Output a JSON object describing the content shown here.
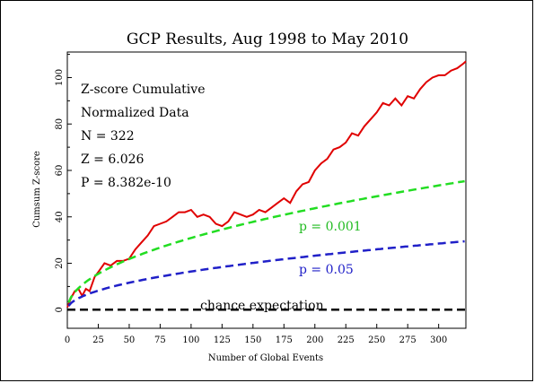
{
  "chart_data": {
    "type": "line",
    "title": "GCP Results, Aug 1998 to May 2010",
    "xlabel": "Number of Global Events",
    "ylabel": "Cumsum Z-score",
    "xlim": [
      0,
      322
    ],
    "ylim": [
      -8,
      111
    ],
    "x_ticks": [
      0,
      25,
      50,
      75,
      100,
      125,
      150,
      175,
      200,
      225,
      250,
      275,
      300
    ],
    "y_ticks": [
      0,
      20,
      40,
      60,
      80,
      100
    ],
    "grid": false,
    "stats": [
      "Z-score Cumulative",
      "Normalized Data",
      "N = 322",
      "Z = 6.026",
      "P = 8.382e-10"
    ],
    "annotations": {
      "p001": "p = 0.001",
      "p05": "p = 0.05",
      "chance": "chance expectation"
    },
    "series": [
      {
        "color": "#e00000",
        "style": "solid",
        "x": [
          0,
          3,
          6,
          9,
          12,
          15,
          18,
          22,
          26,
          30,
          35,
          40,
          45,
          50,
          55,
          60,
          65,
          70,
          75,
          80,
          85,
          90,
          95,
          100,
          105,
          110,
          115,
          120,
          125,
          130,
          135,
          140,
          145,
          150,
          155,
          160,
          165,
          170,
          175,
          180,
          185,
          190,
          195,
          200,
          205,
          210,
          215,
          220,
          225,
          230,
          235,
          240,
          245,
          250,
          255,
          260,
          265,
          270,
          275,
          280,
          285,
          290,
          295,
          300,
          305,
          310,
          315,
          320,
          322
        ],
        "y": [
          1,
          5,
          8,
          9,
          6,
          9,
          8,
          14,
          17,
          20,
          19,
          21,
          21,
          22,
          26,
          29,
          32,
          36,
          37,
          38,
          40,
          42,
          42,
          43,
          40,
          41,
          40,
          37,
          36,
          38,
          42,
          41,
          40,
          41,
          43,
          42,
          44,
          46,
          48,
          46,
          51,
          54,
          55,
          60,
          63,
          65,
          69,
          70,
          72,
          76,
          75,
          79,
          82,
          85,
          89,
          88,
          91,
          88,
          92,
          91,
          95,
          98,
          100,
          101,
          101,
          103,
          104,
          106,
          107
        ]
      },
      {
        "name": "p = 0.001",
        "color": "#22dd22",
        "style": "dashed",
        "func": "3.09*sqrt(n)"
      },
      {
        "name": "p = 0.05",
        "color": "#2020c8",
        "style": "dashed",
        "func": "1.645*sqrt(n)"
      },
      {
        "name": "chance expectation",
        "color": "#000000",
        "style": "dashed",
        "func": "0"
      }
    ]
  }
}
